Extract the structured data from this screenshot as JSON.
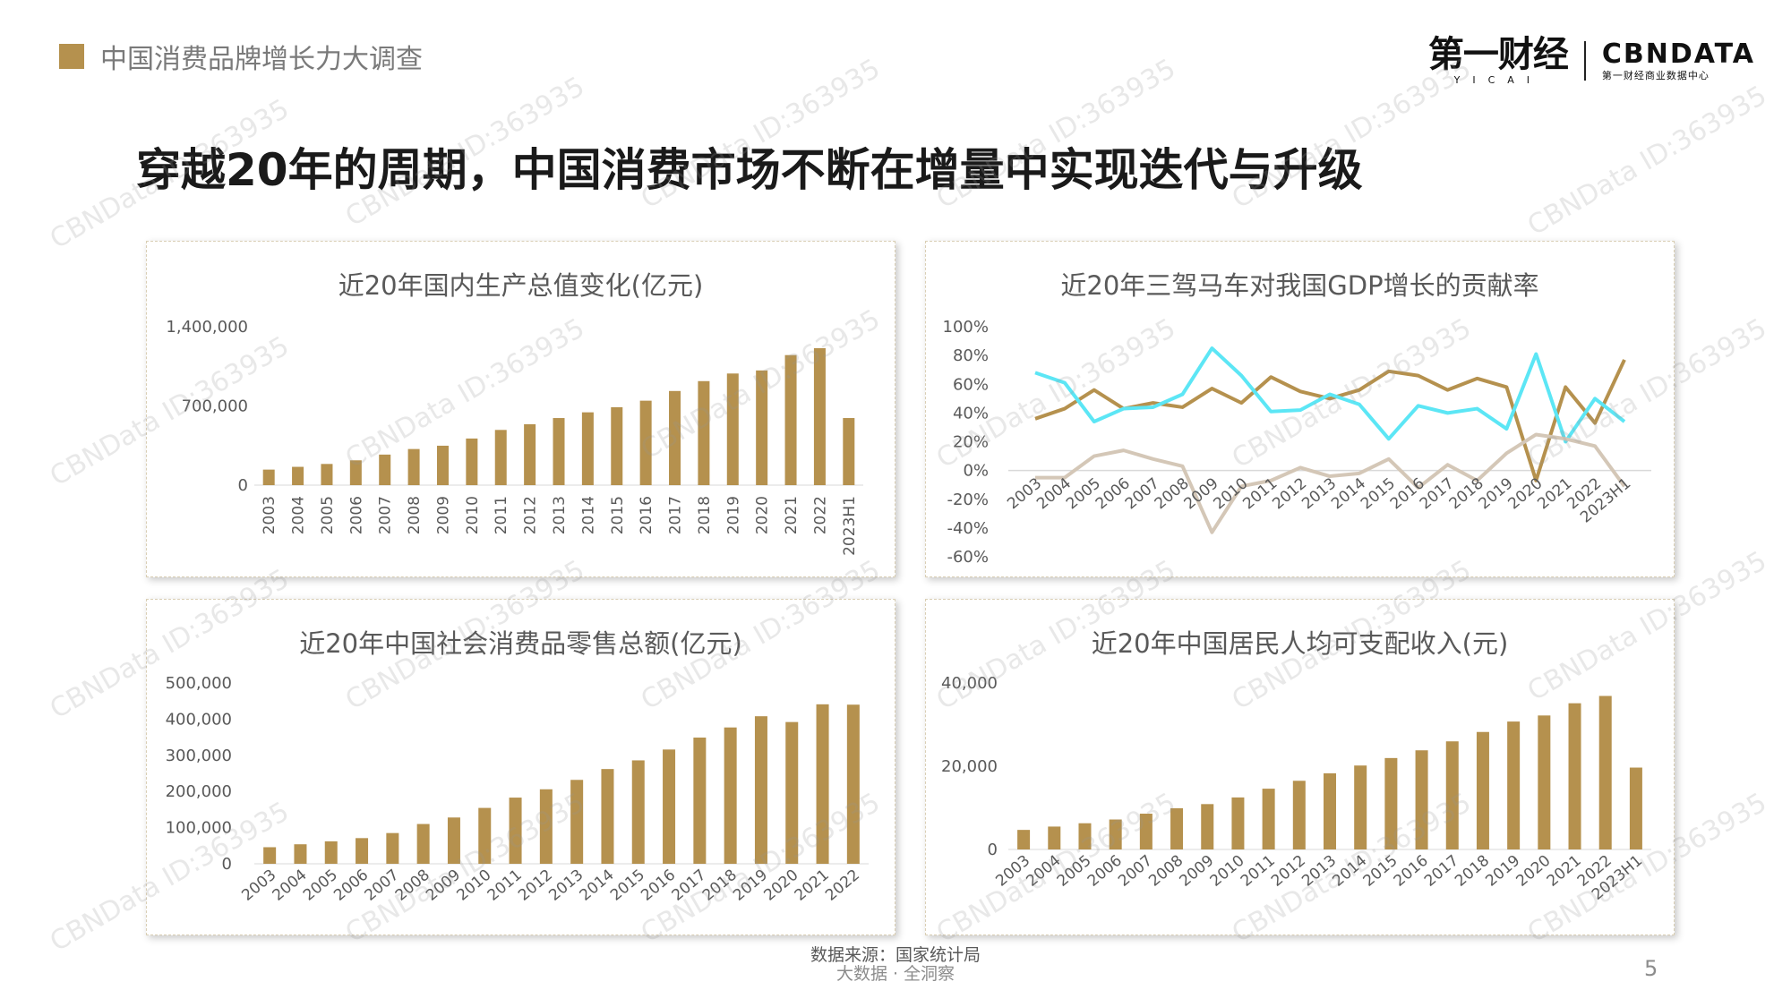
{
  "header": {
    "section_label": "中国消费品牌增长力大调查"
  },
  "logo": {
    "yicai_cn": "第一财经",
    "yicai_en": "YICAI",
    "cbn_en": "CBNDATA",
    "cbn_cn": "第一财经商业数据中心"
  },
  "main_title": "穿越20年的周期，中国消费市场不断在增量中实现迭代与升级",
  "watermark": "CBNData ID:363935",
  "colors": {
    "gold": "#b5914e",
    "cyan": "#5ce6f5",
    "beige": "#d4c7b7",
    "gridline": "#d9d9d9",
    "tick_text": "#595959"
  },
  "footer": {
    "source": "数据来源：国家统计局",
    "tagline": "大数据 · 全洞察",
    "page_number": "5"
  },
  "chart_data": [
    {
      "id": "gdp",
      "type": "bar",
      "title": "近20年国内生产总值变化(亿元)",
      "categories": [
        "2003",
        "2004",
        "2005",
        "2006",
        "2007",
        "2008",
        "2009",
        "2010",
        "2011",
        "2012",
        "2013",
        "2014",
        "2015",
        "2016",
        "2017",
        "2018",
        "2019",
        "2020",
        "2021",
        "2022",
        "2023H1"
      ],
      "values": [
        137422,
        161840,
        187319,
        219439,
        270092,
        319245,
        348518,
        412119,
        487940,
        538580,
        592963,
        643563,
        688858,
        746395,
        832036,
        919281,
        986515,
        1013567,
        1149237,
        1210207,
        593034
      ],
      "yticks": [
        "0",
        "700,000",
        "1,400,000"
      ],
      "ylim": [
        0,
        1400000
      ],
      "label_rotation": "vertical",
      "color": "#b5914e"
    },
    {
      "id": "contribution",
      "type": "line",
      "title": "近20年三驾马车对我国GDP增长的贡献率",
      "categories": [
        "2003",
        "2004",
        "2005",
        "2006",
        "2007",
        "2008",
        "2009",
        "2010",
        "2011",
        "2012",
        "2013",
        "2014",
        "2015",
        "2016",
        "2017",
        "2018",
        "2019",
        "2020",
        "2021",
        "2022",
        "2023H1"
      ],
      "series": [
        {
          "color": "#b5914e",
          "values": [
            36,
            43,
            56,
            43,
            47,
            44,
            57,
            47,
            65,
            55,
            50,
            56,
            69,
            66,
            56,
            64,
            58,
            -7,
            58,
            33,
            77
          ]
        },
        {
          "color": "#5ce6f5",
          "values": [
            68,
            61,
            34,
            43,
            44,
            53,
            85,
            66,
            41,
            42,
            53,
            46,
            22,
            45,
            40,
            43,
            29,
            81,
            20,
            50,
            34
          ]
        },
        {
          "color": "#d4c7b7",
          "values": [
            -5,
            -5,
            10,
            14,
            8,
            3,
            -43,
            -11,
            -7,
            2,
            -4,
            -2,
            8,
            -12,
            4,
            -7,
            12,
            25,
            22,
            17,
            -11
          ]
        }
      ],
      "yticks": [
        "-60%",
        "-40%",
        "-20%",
        "0%",
        "20%",
        "40%",
        "60%",
        "80%",
        "100%"
      ],
      "ylim": [
        -60,
        100
      ],
      "label_rotation": "diagonal"
    },
    {
      "id": "retail",
      "type": "bar",
      "title": "近20年中国社会消费品零售总额(亿元)",
      "categories": [
        "2003",
        "2004",
        "2005",
        "2006",
        "2007",
        "2008",
        "2009",
        "2010",
        "2011",
        "2012",
        "2013",
        "2014",
        "2015",
        "2016",
        "2017",
        "2018",
        "2019",
        "2020",
        "2021",
        "2022"
      ],
      "values": [
        45842,
        53950,
        62100,
        71000,
        85000,
        110000,
        128000,
        154500,
        183000,
        206000,
        232000,
        262000,
        286000,
        316000,
        349000,
        377000,
        408000,
        392000,
        441000,
        440000
      ],
      "yticks": [
        "0",
        "100,000",
        "200,000",
        "300,000",
        "400,000",
        "500,000"
      ],
      "ylim": [
        0,
        500000
      ],
      "label_rotation": "diagonal",
      "color": "#b5914e"
    },
    {
      "id": "income",
      "type": "bar",
      "title": "近20年中国居民人均可支配收入(元)",
      "categories": [
        "2003",
        "2004",
        "2005",
        "2006",
        "2007",
        "2008",
        "2009",
        "2010",
        "2011",
        "2012",
        "2013",
        "2014",
        "2015",
        "2016",
        "2017",
        "2018",
        "2019",
        "2020",
        "2021",
        "2022",
        "2023H1"
      ],
      "values": [
        4700,
        5500,
        6300,
        7200,
        8600,
        9900,
        10900,
        12500,
        14600,
        16500,
        18300,
        20167,
        21966,
        23821,
        25974,
        28228,
        30733,
        32189,
        35128,
        36883,
        19672
      ],
      "yticks": [
        "0",
        "20,000",
        "40,000"
      ],
      "ylim": [
        0,
        40000
      ],
      "label_rotation": "diagonal",
      "color": "#b5914e"
    }
  ]
}
